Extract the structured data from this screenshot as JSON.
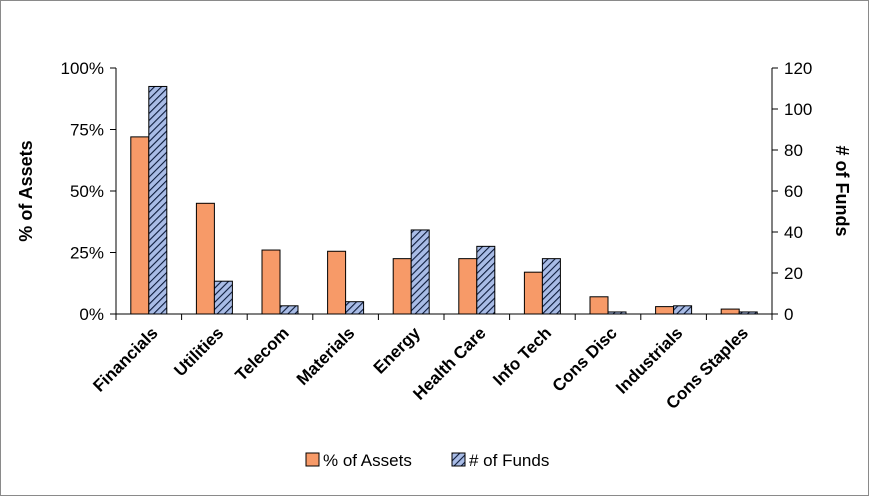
{
  "chart_data": {
    "type": "bar",
    "categories": [
      "Financials",
      "Utilities",
      "Telecom",
      "Materials",
      "Energy",
      "Health Care",
      "Info Tech",
      "Cons Disc",
      "Industrials",
      "Cons Staples"
    ],
    "series": [
      {
        "name": "% of Assets",
        "axis": "left",
        "unit": "%",
        "color": "#f79a68",
        "values": [
          72,
          45,
          26,
          25.5,
          22.5,
          22.5,
          17,
          7,
          3,
          2
        ]
      },
      {
        "name": "# of Funds",
        "axis": "right",
        "color": "#9fb4e0",
        "pattern": "diagonal-hatch",
        "values": [
          111,
          16,
          4,
          6,
          41,
          33,
          27,
          1,
          4,
          1
        ]
      }
    ],
    "y_left": {
      "label": "% of Assets",
      "range": [
        0,
        100
      ],
      "ticks": [
        "0%",
        "25%",
        "50%",
        "75%",
        "100%"
      ]
    },
    "y_right": {
      "label": "# of Funds",
      "range": [
        0,
        120
      ],
      "ticks": [
        "0",
        "20",
        "40",
        "60",
        "80",
        "100",
        "120"
      ]
    },
    "grid": false,
    "legend_position": "bottom"
  }
}
